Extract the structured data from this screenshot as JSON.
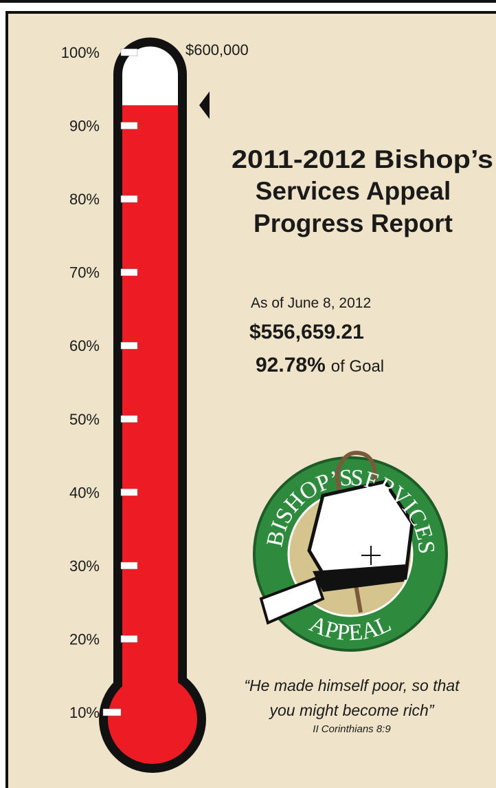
{
  "chart_data": {
    "type": "thermometer",
    "title": [
      "2011-2012 Bishop’s",
      "Services Appeal",
      "Progress Report"
    ],
    "goal_label": "$600,000",
    "date_label": "As of June 8, 2012",
    "amount_label": "$556,659.21",
    "value": 92.78,
    "value_label": "92.78%",
    "value_suffix": "of Goal",
    "color": "#ed1c24",
    "ylim": [
      10,
      100
    ],
    "yticks": [
      {
        "value": 10,
        "label": "10%"
      },
      {
        "value": 20,
        "label": "20%"
      },
      {
        "value": 30,
        "label": "30%"
      },
      {
        "value": 40,
        "label": "40%"
      },
      {
        "value": 50,
        "label": "50%"
      },
      {
        "value": 60,
        "label": "60%"
      },
      {
        "value": 70,
        "label": "70%"
      },
      {
        "value": 80,
        "label": "80%"
      },
      {
        "value": 90,
        "label": "90%"
      },
      {
        "value": 100,
        "label": "100%"
      }
    ],
    "logo": [
      "BISHOP’S",
      "SERVICES",
      "APPEAL"
    ],
    "quote": [
      "“He made himself poor, so that",
      "you might become rich”"
    ],
    "citation": "II Corinthians 8:9"
  }
}
